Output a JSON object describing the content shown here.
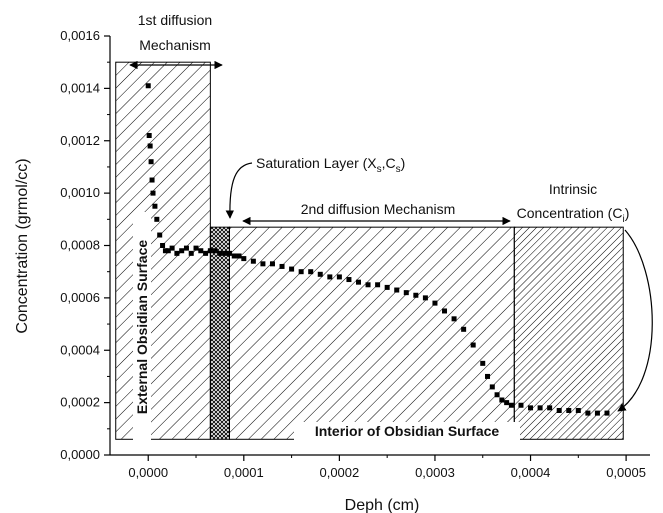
{
  "chart_data": {
    "type": "scatter",
    "xlabel": "Deph (cm)",
    "ylabel": "Concentration (grmol/cc)",
    "xlim": [
      -4e-05,
      0.000525
    ],
    "ylim": [
      0,
      0.0016
    ],
    "x_ticks": [
      {
        "value": 0.0,
        "label": "0,0000"
      },
      {
        "value": 0.0001,
        "label": "0,0001"
      },
      {
        "value": 0.0002,
        "label": "0,0002"
      },
      {
        "value": 0.0003,
        "label": "0,0003"
      },
      {
        "value": 0.0004,
        "label": "0,0004"
      },
      {
        "value": 0.0005,
        "label": "0,0005"
      }
    ],
    "y_ticks": [
      {
        "value": 0.0,
        "label": "0,0000"
      },
      {
        "value": 0.0002,
        "label": "0,0002"
      },
      {
        "value": 0.0004,
        "label": "0,0004"
      },
      {
        "value": 0.0006,
        "label": "0,0006"
      },
      {
        "value": 0.0008,
        "label": "0,0008"
      },
      {
        "value": 0.001,
        "label": "0,0010"
      },
      {
        "value": 0.0012,
        "label": "0,0012"
      },
      {
        "value": 0.0014,
        "label": "0,0014"
      },
      {
        "value": 0.0016,
        "label": "0,0016"
      }
    ],
    "grid": false,
    "series": [
      {
        "color": "#000000",
        "x": [
          0.0,
          1e-06,
          2e-06,
          3e-06,
          4e-06,
          5e-06,
          7e-06,
          9e-06,
          1.2e-05,
          1.5e-05,
          1.8e-05,
          2.1e-05,
          2.5e-05,
          3e-05,
          3.5e-05,
          4e-05,
          4.5e-05,
          5e-05,
          5.5e-05,
          6e-05,
          6.5e-05,
          7e-05,
          7.5e-05,
          8e-05,
          8.5e-05,
          9e-05,
          9.5e-05,
          0.0001,
          0.00011,
          0.00012,
          0.00013,
          0.00014,
          0.00015,
          0.00016,
          0.00017,
          0.00018,
          0.00019,
          0.0002,
          0.00021,
          0.00022,
          0.00023,
          0.00024,
          0.00025,
          0.00026,
          0.00027,
          0.00028,
          0.00029,
          0.0003,
          0.00031,
          0.00032,
          0.00033,
          0.00034,
          0.00035,
          0.000355,
          0.00036,
          0.000365,
          0.00037,
          0.000375,
          0.00038,
          0.00039,
          0.0004,
          0.00041,
          0.00042,
          0.00043,
          0.00044,
          0.00045,
          0.00046,
          0.00047,
          0.00048
        ],
        "y": [
          0.00141,
          0.00122,
          0.00118,
          0.00112,
          0.00105,
          0.001,
          0.00095,
          0.0009,
          0.00084,
          0.0008,
          0.00078,
          0.00078,
          0.00079,
          0.00077,
          0.00078,
          0.00079,
          0.00077,
          0.00079,
          0.00078,
          0.00077,
          0.00078,
          0.00078,
          0.00077,
          0.00077,
          0.00077,
          0.00076,
          0.00076,
          0.00075,
          0.00074,
          0.00073,
          0.00073,
          0.00072,
          0.00071,
          0.0007,
          0.0007,
          0.00069,
          0.00068,
          0.00068,
          0.00067,
          0.00066,
          0.00065,
          0.00065,
          0.00064,
          0.00063,
          0.00062,
          0.00061,
          0.0006,
          0.00058,
          0.00055,
          0.00052,
          0.00048,
          0.00042,
          0.00035,
          0.0003,
          0.00026,
          0.00023,
          0.00021,
          0.0002,
          0.00019,
          0.00019,
          0.00018,
          0.00018,
          0.00018,
          0.00017,
          0.00017,
          0.00017,
          0.00016,
          0.00016,
          0.00016
        ]
      }
    ],
    "regions": [
      {
        "x0": -3.4e-05,
        "x1": 6.5e-05,
        "y0": 6e-05,
        "y1": 0.0015,
        "fill": "diagonal-hatch"
      },
      {
        "x0": 6.5e-05,
        "x1": 8.5e-05,
        "y0": 6e-05,
        "y1": 0.00087,
        "fill": "cross-hatch"
      },
      {
        "x0": 8.5e-05,
        "x1": 0.000383,
        "y0": 6e-05,
        "y1": 0.00087,
        "fill": "diagonal-hatch-sparse"
      },
      {
        "x0": 0.000383,
        "x1": 0.000497,
        "y0": 6e-05,
        "y1": 0.00087,
        "fill": "diagonal-hatch-dense"
      }
    ],
    "annotations": {
      "first_line1": "1st diffusion",
      "first_line2": "Mechanism",
      "saturation_text": "Saturation Layer (X",
      "saturation_sub_s1": "s",
      "saturation_mid": ",C",
      "saturation_sub_s2": "s",
      "saturation_end": ")",
      "second": "2nd diffusion Mechanism",
      "intrinsic_line1": "Intrinsic",
      "intrinsic_line2": "Concentration (C",
      "intrinsic_sub": "i",
      "intrinsic_end": ")",
      "external": "External Obsidian Surface",
      "interior": "Interior of Obsidian Surface"
    }
  }
}
